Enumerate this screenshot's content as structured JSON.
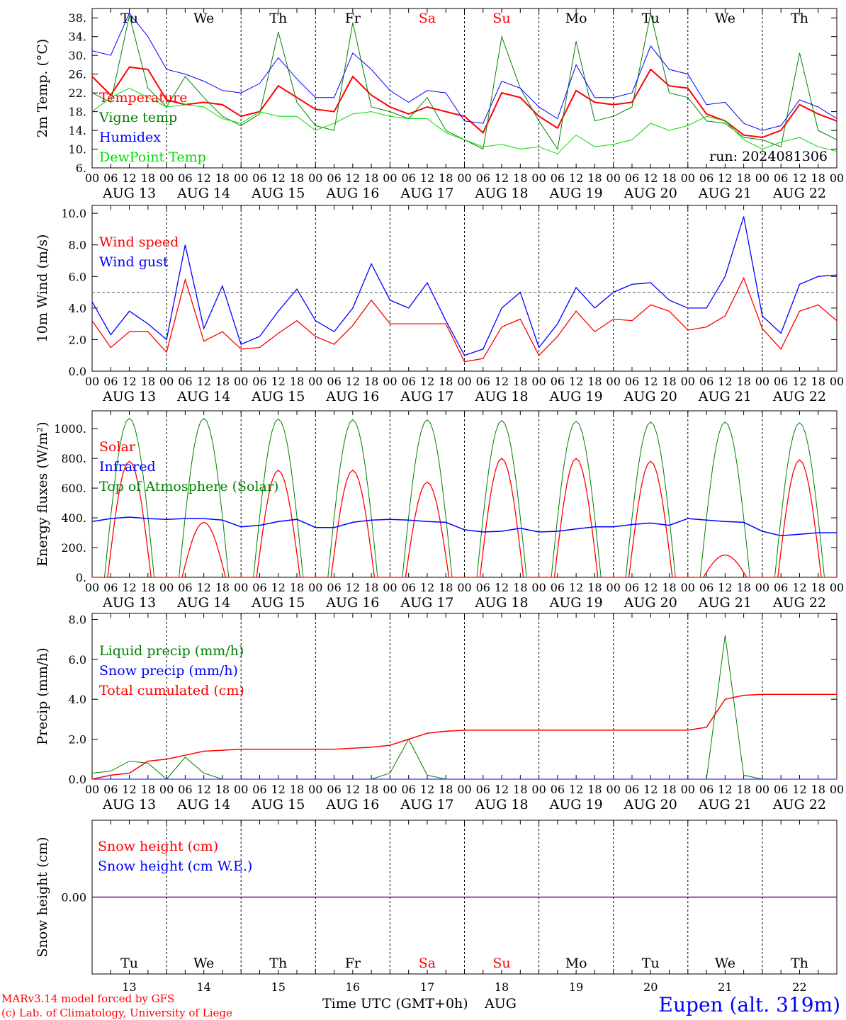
{
  "colors": {
    "red": "#ff0000",
    "green": "#008000",
    "blue": "#0000ff",
    "lightgreen": "#00dd00",
    "purple": "#800080",
    "black": "#000000"
  },
  "days": {
    "names": [
      "Tu",
      "We",
      "Th",
      "Fr",
      "Sa",
      "Su",
      "Mo",
      "Tu",
      "We",
      "Th"
    ],
    "weekend_flags": [
      false,
      false,
      false,
      false,
      true,
      true,
      false,
      false,
      false,
      false
    ],
    "dates": [
      "AUG 13",
      "AUG 14",
      "AUG 15",
      "AUG 16",
      "AUG 17",
      "AUG 18",
      "AUG 19",
      "AUG 20",
      "AUG 21",
      "AUG 22"
    ],
    "numbers": [
      "13",
      "14",
      "15",
      "16",
      "17",
      "18",
      "19",
      "20",
      "21",
      "22"
    ],
    "hour_ticks": [
      "00",
      "06",
      "12",
      "18"
    ],
    "final_tick": "00"
  },
  "footer": {
    "model_line": "MARv3.14 model forced by GFS",
    "copyright_line": "(c) Lab. of Climatology, University of Liege",
    "xlabel": "Time UTC (GMT+0h)",
    "month": "AUG",
    "station": "Eupen (alt. 319m)"
  },
  "chart_data": [
    {
      "type": "line",
      "ylabel": "2m Temp. (°C)",
      "ylim": [
        6,
        40
      ],
      "yticks": [
        "6.",
        "10.",
        "14.",
        "18.",
        "22.",
        "26.",
        "30.",
        "34.",
        "38."
      ],
      "annotation": "run: 2024081306",
      "x_start": "2024-08-13 00:00",
      "x_end": "2024-08-23 00:00",
      "x_step_hours": 6,
      "series": [
        {
          "name": "Temperature",
          "color": "#ff0000",
          "values": [
            25.5,
            21.5,
            27.5,
            27,
            20.5,
            19.5,
            20,
            19.5,
            17,
            18,
            23.5,
            21,
            18.5,
            18,
            25.5,
            21.5,
            19,
            17.5,
            19,
            18,
            17,
            13.5,
            22,
            21,
            17,
            14.5,
            22.5,
            20,
            19.5,
            20,
            27,
            23.5,
            23,
            17.5,
            16,
            13,
            12.5,
            14,
            19.5,
            17.5,
            16
          ]
        },
        {
          "name": "Vigne temp",
          "color": "#008000",
          "values": [
            22,
            20,
            38.5,
            23,
            19,
            25.5,
            21,
            17,
            15,
            17.5,
            35,
            20,
            15,
            14,
            37,
            19,
            18,
            16.5,
            21,
            14,
            12,
            10,
            34,
            23,
            16,
            10,
            33,
            16,
            17,
            19,
            39,
            22,
            21,
            16,
            15.5,
            12.5,
            12,
            10.5,
            30.5,
            14,
            12
          ]
        },
        {
          "name": "Humidex",
          "color": "#0000ff",
          "values": [
            31,
            30,
            39,
            34,
            27,
            26,
            24.5,
            22.5,
            22,
            24,
            29.5,
            25,
            21,
            21,
            30.5,
            27,
            22.5,
            20,
            22.5,
            22,
            16,
            15.5,
            24.5,
            23,
            19,
            16.5,
            28,
            21,
            21,
            22,
            32,
            27,
            26,
            19.5,
            20,
            15.5,
            14,
            15,
            20.5,
            19,
            16.5
          ]
        },
        {
          "name": "DewPoint Temp",
          "color": "#00dd00",
          "values": [
            18,
            21,
            23,
            21,
            19,
            19.5,
            19,
            16.5,
            15.5,
            18,
            17,
            17,
            14,
            15.5,
            17.5,
            18,
            17,
            16.5,
            16.5,
            13.5,
            12,
            10.5,
            11,
            10,
            10.5,
            9,
            13,
            10.5,
            11,
            12,
            15.5,
            14,
            15,
            17,
            16,
            12,
            10,
            11.5,
            12.5,
            10.5,
            9.5
          ]
        }
      ]
    },
    {
      "type": "line",
      "ylabel": "10m Wind (m/s)",
      "ylim": [
        0,
        10
      ],
      "yticks": [
        "0.0",
        "2.0",
        "4.0",
        "6.0",
        "8.0",
        "10.0"
      ],
      "reference_line": 5,
      "x_start": "2024-08-13 00:00",
      "x_end": "2024-08-23 00:00",
      "x_step_hours": 6,
      "series": [
        {
          "name": "Wind speed",
          "color": "#ff0000",
          "values": [
            3.2,
            1.5,
            2.5,
            2.5,
            1.2,
            5.8,
            1.9,
            2.5,
            1.4,
            1.5,
            2.4,
            3.2,
            2.2,
            1.7,
            2.9,
            4.5,
            3.0,
            3.0,
            3.0,
            3.0,
            0.6,
            0.8,
            2.8,
            3.3,
            1.0,
            2.2,
            3.8,
            2.5,
            3.3,
            3.2,
            4.2,
            3.8,
            2.6,
            2.8,
            3.5,
            5.9,
            2.7,
            1.4,
            3.8,
            4.2,
            3.2
          ]
        },
        {
          "name": "Wind gust",
          "color": "#0000ff",
          "values": [
            4.4,
            2.3,
            3.8,
            3.0,
            2.0,
            8.0,
            2.7,
            5.4,
            1.7,
            2.2,
            3.8,
            5.2,
            3.2,
            2.5,
            4.0,
            6.8,
            4.5,
            4.0,
            5.6,
            3.2,
            1.0,
            1.4,
            4.0,
            5.0,
            1.5,
            3.0,
            5.3,
            4.0,
            5.0,
            5.5,
            5.6,
            4.5,
            4.0,
            4.0,
            6.0,
            9.8,
            3.5,
            2.4,
            5.5,
            6.0,
            6.1
          ]
        }
      ]
    },
    {
      "type": "line",
      "ylabel": "Energy fluxes (W/m²)",
      "ylim": [
        0,
        1100
      ],
      "yticks": [
        "0.",
        "200.",
        "400.",
        "600.",
        "800.",
        "1000."
      ],
      "x_start": "2024-08-13 00:00",
      "x_end": "2024-08-23 00:00",
      "daily_peaks": {
        "Solar": [
          780,
          370,
          720,
          720,
          640,
          800,
          800,
          780,
          150,
          790
        ],
        "Top of Atmosphere (Solar)": [
          1070,
          1070,
          1065,
          1060,
          1060,
          1055,
          1050,
          1045,
          1045,
          1040
        ]
      },
      "series": [
        {
          "name": "Solar",
          "color": "#ff0000"
        },
        {
          "name": "Infrared",
          "color": "#0000ff",
          "values": [
            375,
            395,
            405,
            395,
            390,
            395,
            395,
            385,
            340,
            350,
            375,
            390,
            335,
            335,
            370,
            385,
            390,
            385,
            375,
            370,
            320,
            305,
            310,
            330,
            305,
            310,
            325,
            340,
            340,
            355,
            365,
            350,
            395,
            385,
            375,
            370,
            310,
            280,
            290,
            300,
            300
          ]
        },
        {
          "name": "Top of Atmosphere (Solar)",
          "color": "#008000"
        }
      ]
    },
    {
      "type": "line",
      "ylabel": "Precip (mm/h)",
      "ylim": [
        0,
        8
      ],
      "yticks": [
        "0.0",
        "2.0",
        "4.0",
        "6.0",
        "8.0"
      ],
      "x_start": "2024-08-13 00:00",
      "x_end": "2024-08-23 00:00",
      "x_step_hours": 6,
      "series": [
        {
          "name": "Liquid precip (mm/h)",
          "color": "#008000",
          "values": [
            0.3,
            0.4,
            0.9,
            0.8,
            0,
            1.1,
            0.3,
            0,
            0,
            0,
            0,
            0,
            0,
            0,
            0,
            0,
            0.3,
            2.0,
            0.2,
            0,
            0,
            0,
            0,
            0,
            0,
            0,
            0,
            0,
            0,
            0,
            0,
            0,
            0,
            0,
            7.2,
            0.2,
            0,
            0,
            0,
            0,
            0
          ]
        },
        {
          "name": "Snow precip (mm/h)",
          "color": "#0000ff",
          "values": [
            0,
            0,
            0,
            0,
            0,
            0,
            0,
            0,
            0,
            0,
            0,
            0,
            0,
            0,
            0,
            0,
            0,
            0,
            0,
            0,
            0,
            0,
            0,
            0,
            0,
            0,
            0,
            0,
            0,
            0,
            0,
            0,
            0,
            0,
            0,
            0,
            0,
            0,
            0,
            0,
            0
          ]
        },
        {
          "name": "Total cumulated (cm)",
          "color": "#ff0000",
          "values": [
            0,
            0.2,
            0.3,
            0.9,
            1.0,
            1.2,
            1.4,
            1.45,
            1.5,
            1.5,
            1.5,
            1.5,
            1.5,
            1.5,
            1.55,
            1.6,
            1.7,
            2.0,
            2.3,
            2.4,
            2.45,
            2.45,
            2.45,
            2.45,
            2.45,
            2.45,
            2.45,
            2.45,
            2.45,
            2.45,
            2.45,
            2.45,
            2.45,
            2.6,
            4.0,
            4.2,
            4.25,
            4.25,
            4.25,
            4.25,
            4.25
          ]
        }
      ]
    },
    {
      "type": "line",
      "ylabel": "Snow height (cm)",
      "yticks": [
        "0.00"
      ],
      "x_start": "2024-08-13 00:00",
      "x_end": "2024-08-23 00:00",
      "series": [
        {
          "name": "Snow height (cm)",
          "color": "#ff0000",
          "values": [
            0,
            0
          ]
        },
        {
          "name": "Snow height (cm W.E.)",
          "color": "#0000ff",
          "values": [
            0,
            0
          ]
        }
      ]
    }
  ]
}
